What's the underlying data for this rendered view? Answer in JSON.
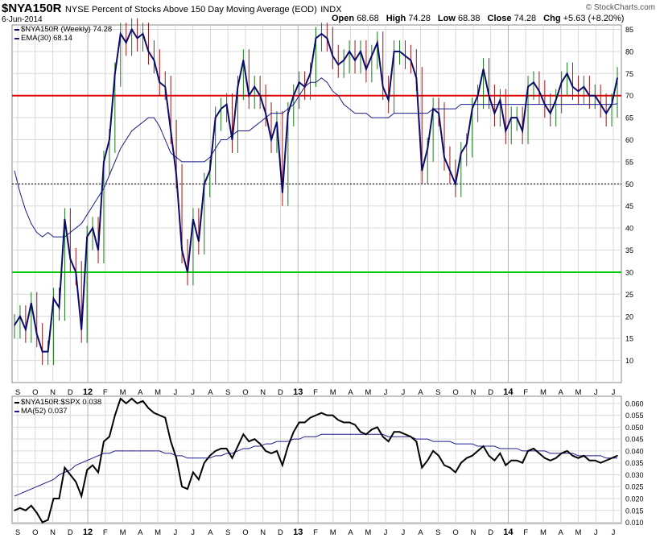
{
  "header": {
    "symbol": "$NYA150R",
    "description": "NYSE Percent of Stocks Above 150 Day Moving Average (EOD)",
    "exchange": "INDX",
    "date": "6-Jun-2014",
    "brand": "© StockCharts.com",
    "open_label": "Open",
    "open": "68.68",
    "high_label": "High",
    "high": "74.28",
    "low_label": "Low",
    "low": "68.38",
    "close_label": "Close",
    "close": "74.28",
    "chg_label": "Chg",
    "chg": "+5.63 (+8.20%)"
  },
  "colors": {
    "price_line": "#0b0b6e",
    "ema": "#1c1c8c",
    "bar_up": "#1a7a1a",
    "bar_down": "#a01515",
    "level_high": "#dd0000",
    "level_low": "#00cc00",
    "ratio_line": "#000000",
    "ma52": "#1c1c8c",
    "grid": "#d9d9d9"
  },
  "chart_data": [
    {
      "type": "line",
      "panel": "main",
      "legend": [
        "$NYA150R (Weekly) 74.28",
        "EMA(30) 68.14"
      ],
      "legend_position": "top-left",
      "ylim": [
        5,
        86
      ],
      "yticks": [
        10,
        15,
        20,
        25,
        30,
        35,
        40,
        45,
        50,
        55,
        60,
        65,
        70,
        75,
        80,
        85
      ],
      "horizontal_lines": [
        {
          "value": 70,
          "color": "red",
          "style": "solid"
        },
        {
          "value": 50,
          "color": "black",
          "style": "dotted"
        },
        {
          "value": 30,
          "color": "green",
          "style": "solid"
        }
      ],
      "x_labels": [
        "S",
        "O",
        "N",
        "D",
        "12",
        "F",
        "M",
        "A",
        "M",
        "J",
        "J",
        "A",
        "S",
        "O",
        "N",
        "D",
        "13",
        "F",
        "M",
        "A",
        "M",
        "J",
        "J",
        "A",
        "S",
        "O",
        "N",
        "D",
        "14",
        "F",
        "M",
        "A",
        "M",
        "J",
        "J"
      ],
      "grid": true,
      "series": [
        {
          "name": "$NYA150R (Weekly)",
          "values": [
            18,
            20,
            17,
            23,
            16,
            12,
            12,
            24,
            22,
            42,
            33,
            30,
            17,
            38,
            40,
            35,
            55,
            60,
            75,
            84,
            82,
            85,
            83,
            84,
            80,
            78,
            73,
            72,
            62,
            52,
            35,
            30,
            42,
            37,
            50,
            53,
            65,
            67,
            68,
            60,
            72,
            78,
            70,
            72,
            70,
            66,
            60,
            64,
            48,
            66,
            70,
            73,
            72,
            75,
            83,
            84,
            83,
            79,
            77,
            78,
            80,
            78,
            80,
            76,
            79,
            82,
            72,
            69,
            80,
            80,
            79,
            78,
            74,
            53,
            58,
            67,
            66,
            56,
            53,
            50,
            57,
            59,
            67,
            70,
            76,
            70,
            66,
            69,
            62,
            65,
            65,
            62,
            72,
            73,
            71,
            68,
            66,
            69,
            73,
            75,
            72,
            71,
            72,
            70,
            70,
            68,
            66,
            68,
            74
          ],
          "ema30": [
            53,
            48,
            44,
            41,
            39,
            38,
            39,
            38,
            38,
            38,
            39,
            40,
            41,
            43,
            45,
            47,
            49,
            52,
            55,
            58,
            60,
            62,
            63,
            64,
            65,
            65,
            63,
            60,
            57,
            56,
            55,
            55,
            55,
            55,
            55,
            56,
            58,
            60,
            60,
            61,
            62,
            62,
            62,
            63,
            64,
            65,
            66,
            66,
            66,
            67,
            68,
            70,
            72,
            73,
            73,
            74,
            73,
            71,
            70,
            68,
            67,
            66,
            66,
            66,
            65,
            65,
            65,
            65,
            66,
            66,
            66,
            66,
            66,
            66,
            66,
            67,
            67,
            67,
            67,
            67,
            68,
            68,
            68,
            68,
            68,
            68,
            68,
            68,
            68,
            68,
            68,
            68,
            68,
            68,
            68,
            68,
            68,
            68,
            68,
            68,
            68,
            68,
            68,
            68,
            68,
            68,
            68,
            68,
            68.14
          ]
        }
      ]
    },
    {
      "type": "line",
      "panel": "ratio",
      "legend": [
        "$NYA150R:$SPX 0.038",
        "MA(52) 0.037"
      ],
      "legend_position": "top-left",
      "ylim": [
        0.0095,
        0.063
      ],
      "yticks": [
        0.01,
        0.015,
        0.02,
        0.025,
        0.03,
        0.035,
        0.04,
        0.045,
        0.05,
        0.055,
        0.06
      ],
      "x_labels": [
        "S",
        "O",
        "N",
        "D",
        "12",
        "F",
        "M",
        "A",
        "M",
        "J",
        "J",
        "A",
        "S",
        "O",
        "N",
        "D",
        "13",
        "F",
        "M",
        "A",
        "M",
        "J",
        "J",
        "A",
        "S",
        "O",
        "N",
        "D",
        "14",
        "F",
        "M",
        "A",
        "M",
        "J",
        "J"
      ],
      "grid": true,
      "series": [
        {
          "name": "$NYA150R:$SPX",
          "values": [
            0.015,
            0.016,
            0.015,
            0.017,
            0.014,
            0.01,
            0.011,
            0.02,
            0.02,
            0.033,
            0.03,
            0.027,
            0.021,
            0.032,
            0.034,
            0.031,
            0.044,
            0.046,
            0.055,
            0.062,
            0.06,
            0.062,
            0.06,
            0.061,
            0.058,
            0.056,
            0.055,
            0.054,
            0.044,
            0.037,
            0.025,
            0.024,
            0.031,
            0.028,
            0.035,
            0.038,
            0.04,
            0.041,
            0.041,
            0.037,
            0.042,
            0.047,
            0.044,
            0.045,
            0.043,
            0.04,
            0.039,
            0.04,
            0.034,
            0.042,
            0.048,
            0.052,
            0.052,
            0.054,
            0.055,
            0.056,
            0.055,
            0.055,
            0.053,
            0.052,
            0.052,
            0.051,
            0.048,
            0.047,
            0.049,
            0.05,
            0.046,
            0.044,
            0.048,
            0.048,
            0.047,
            0.046,
            0.044,
            0.033,
            0.036,
            0.04,
            0.038,
            0.034,
            0.033,
            0.031,
            0.035,
            0.037,
            0.038,
            0.04,
            0.042,
            0.038,
            0.036,
            0.039,
            0.034,
            0.036,
            0.036,
            0.035,
            0.04,
            0.041,
            0.039,
            0.037,
            0.036,
            0.037,
            0.039,
            0.04,
            0.038,
            0.037,
            0.038,
            0.036,
            0.036,
            0.035,
            0.036,
            0.037,
            0.038
          ],
          "ma52": [
            0.021,
            0.022,
            0.023,
            0.024,
            0.025,
            0.026,
            0.027,
            0.028,
            0.03,
            0.031,
            0.032,
            0.034,
            0.035,
            0.036,
            0.037,
            0.038,
            0.039,
            0.039,
            0.04,
            0.04,
            0.04,
            0.04,
            0.04,
            0.04,
            0.04,
            0.04,
            0.04,
            0.039,
            0.039,
            0.038,
            0.038,
            0.037,
            0.037,
            0.037,
            0.037,
            0.037,
            0.038,
            0.038,
            0.039,
            0.039,
            0.04,
            0.041,
            0.041,
            0.042,
            0.042,
            0.043,
            0.043,
            0.044,
            0.044,
            0.044,
            0.045,
            0.045,
            0.046,
            0.046,
            0.046,
            0.047,
            0.047,
            0.047,
            0.047,
            0.047,
            0.047,
            0.047,
            0.047,
            0.047,
            0.047,
            0.047,
            0.047,
            0.046,
            0.046,
            0.046,
            0.046,
            0.046,
            0.045,
            0.045,
            0.045,
            0.044,
            0.044,
            0.044,
            0.044,
            0.043,
            0.043,
            0.043,
            0.043,
            0.042,
            0.042,
            0.042,
            0.042,
            0.041,
            0.041,
            0.041,
            0.041,
            0.04,
            0.04,
            0.04,
            0.04,
            0.04,
            0.039,
            0.039,
            0.039,
            0.039,
            0.039,
            0.038,
            0.038,
            0.038,
            0.038,
            0.038,
            0.037,
            0.037,
            0.037
          ]
        }
      ]
    }
  ]
}
